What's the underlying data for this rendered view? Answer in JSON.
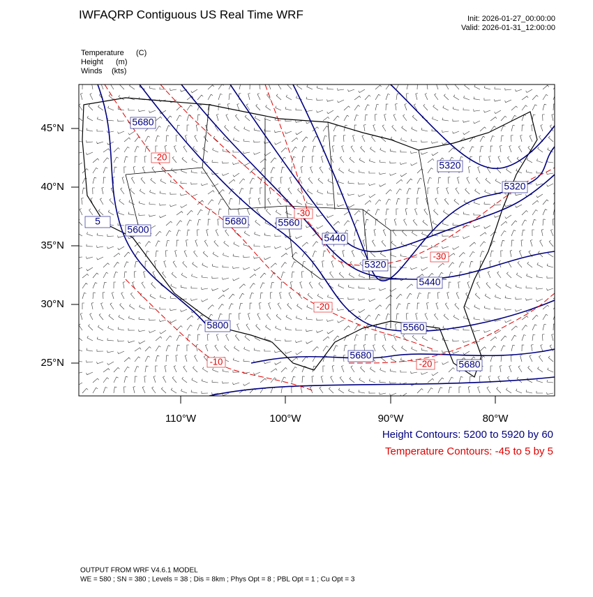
{
  "header": {
    "title": "IWFAQRP Contiguous US Real Time WRF",
    "init": "Init: 2026-01-27_00:00:00",
    "valid": "Valid: 2026-01-31_12:00:00"
  },
  "fields": [
    {
      "name": "Temperature",
      "unit": "(C)"
    },
    {
      "name": "Height",
      "unit": "(m)"
    },
    {
      "name": "Winds",
      "unit": "(kts)"
    }
  ],
  "axes": {
    "lon_ticks": [
      "110°W",
      "100°W",
      "90°W",
      "80°W"
    ],
    "lat_ticks": [
      "45°N",
      "40°N",
      "35°N",
      "30°N",
      "25°N"
    ]
  },
  "height_contour_labels": [
    "5680",
    "5320",
    "5320",
    "5600",
    "5680",
    "5560",
    "5440",
    "5320",
    "5440",
    "5560",
    "5800",
    "5680",
    "5680",
    "5"
  ],
  "temperature_contour_labels": [
    "-20",
    "-30",
    "-20",
    "-10",
    "-20",
    "-30"
  ],
  "legend": {
    "height": "Height Contours: 5200 to 5920 by 60",
    "temperature": "Temperature Contours: -45 to 5 by 5"
  },
  "footer": {
    "model": "OUTPUT FROM WRF V4.6.1 MODEL",
    "settings": "WE = 580 ; SN = 380 ; Levels = 38 ; Dis = 8km ; Phys Opt = 8 ; PBL Opt = 1 ; Cu Opt = 3"
  }
}
